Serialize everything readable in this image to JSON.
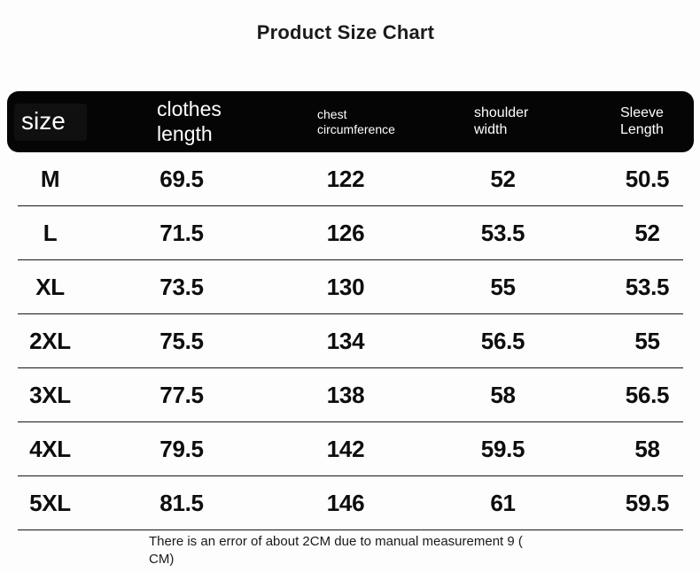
{
  "title": "Product Size Chart",
  "table": {
    "header": {
      "size": "size",
      "clothes_length": "clothes\nlength",
      "chest": "chest\ncircumference",
      "shoulder": "shoulder\nwidth",
      "sleeve": "Sleeve\nLength"
    },
    "rows": [
      {
        "size": "M",
        "clothes_length": "69.5",
        "chest": "122",
        "shoulder": "52",
        "sleeve": "50.5"
      },
      {
        "size": "L",
        "clothes_length": "71.5",
        "chest": "126",
        "shoulder": "53.5",
        "sleeve": "52"
      },
      {
        "size": "XL",
        "clothes_length": "73.5",
        "chest": "130",
        "shoulder": "55",
        "sleeve": "53.5"
      },
      {
        "size": "2XL",
        "clothes_length": "75.5",
        "chest": "134",
        "shoulder": "56.5",
        "sleeve": "55"
      },
      {
        "size": "3XL",
        "clothes_length": "77.5",
        "chest": "138",
        "shoulder": "58",
        "sleeve": "56.5"
      },
      {
        "size": "4XL",
        "clothes_length": "79.5",
        "chest": "142",
        "shoulder": "59.5",
        "sleeve": "58"
      },
      {
        "size": "5XL",
        "clothes_length": "81.5",
        "chest": "146",
        "shoulder": "61",
        "sleeve": "59.5"
      }
    ]
  },
  "footer": {
    "line1": "There is an error of about 2CM due to manual measurement 9 (",
    "line2": "CM)"
  },
  "colors": {
    "header_bg": "#050505",
    "header_text": "#ffffff",
    "body_text": "#0d0d0d",
    "divider": "#161616",
    "background": "#fdfdfd"
  }
}
